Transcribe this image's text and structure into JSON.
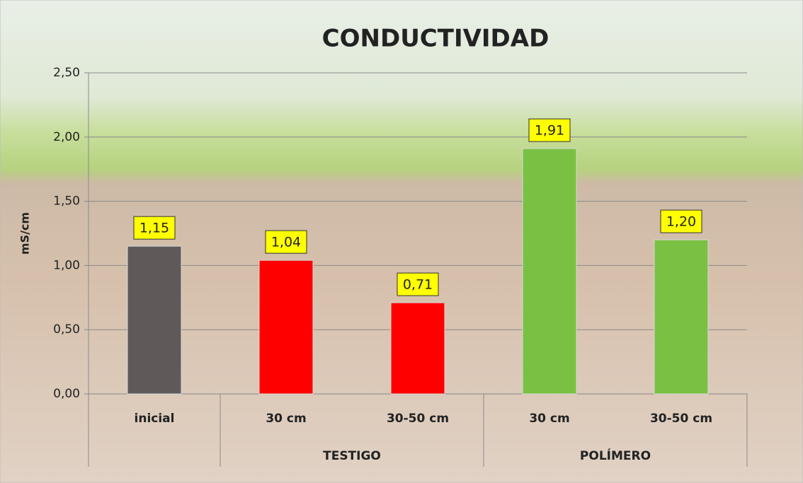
{
  "chart_data": {
    "type": "bar",
    "title": "CONDUCTIVIDAD",
    "y_label": "mS/cm",
    "categories": [
      "inicial",
      "30 cm",
      "30-50 cm",
      "30 cm",
      "30-50 cm"
    ],
    "groups": [
      null,
      "TESTIGO",
      "TESTIGO",
      "POLÍMERO",
      "POLÍMERO"
    ],
    "values": [
      1.15,
      1.04,
      0.71,
      1.91,
      1.2
    ],
    "value_labels": [
      "1,15",
      "1,04",
      "0,71",
      "1,91",
      "1,20"
    ],
    "colors": [
      "#5f5959",
      "#ff0000",
      "#ff0000",
      "#7ac143",
      "#7ac143"
    ],
    "ylim": [
      0,
      2.5
    ],
    "yticks": [
      {
        "value": 0,
        "label": "0,00"
      },
      {
        "value": 0.5,
        "label": "0,50"
      },
      {
        "value": 1,
        "label": "1,00"
      },
      {
        "value": 1.5,
        "label": "1,50"
      },
      {
        "value": 2,
        "label": "2,00"
      },
      {
        "value": 2.5,
        "label": "2,50"
      }
    ],
    "grid": true
  }
}
